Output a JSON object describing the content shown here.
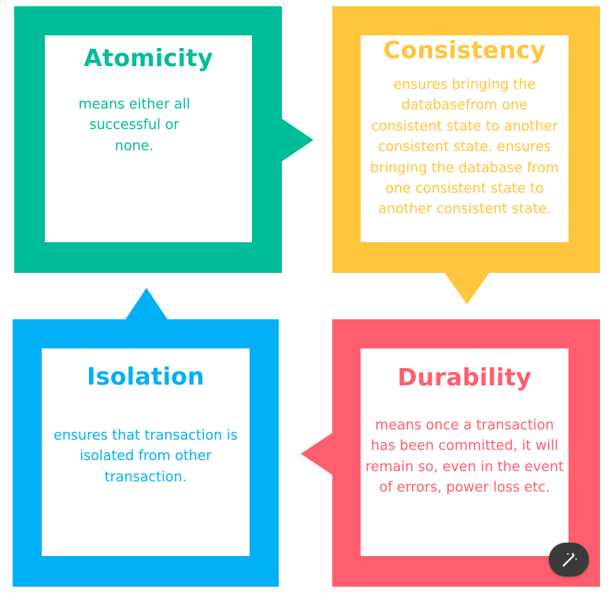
{
  "colors": {
    "atomicity": "#00BC98",
    "consistency": "#FFC53C",
    "isolation": "#02B0F5",
    "durability": "#FF5E6E",
    "fab": "#3A3A3A"
  },
  "atomicity": {
    "title": "Atomicity",
    "description": "means either all successful or none."
  },
  "consistency": {
    "title": "Consistency",
    "description": "ensures bringing the databasefrom one consistent state to another consistent state. ensures bringing the database from one consistent state to another consistent state."
  },
  "isolation": {
    "title": "Isolation",
    "description": "ensures that transaction is isolated from other transaction."
  },
  "durability": {
    "title": "Durability",
    "description": "means once a transaction has been committed, it will remain so, even in the event of errors, power loss etc."
  },
  "edit_button": {
    "icon": "magic-wand-icon"
  }
}
